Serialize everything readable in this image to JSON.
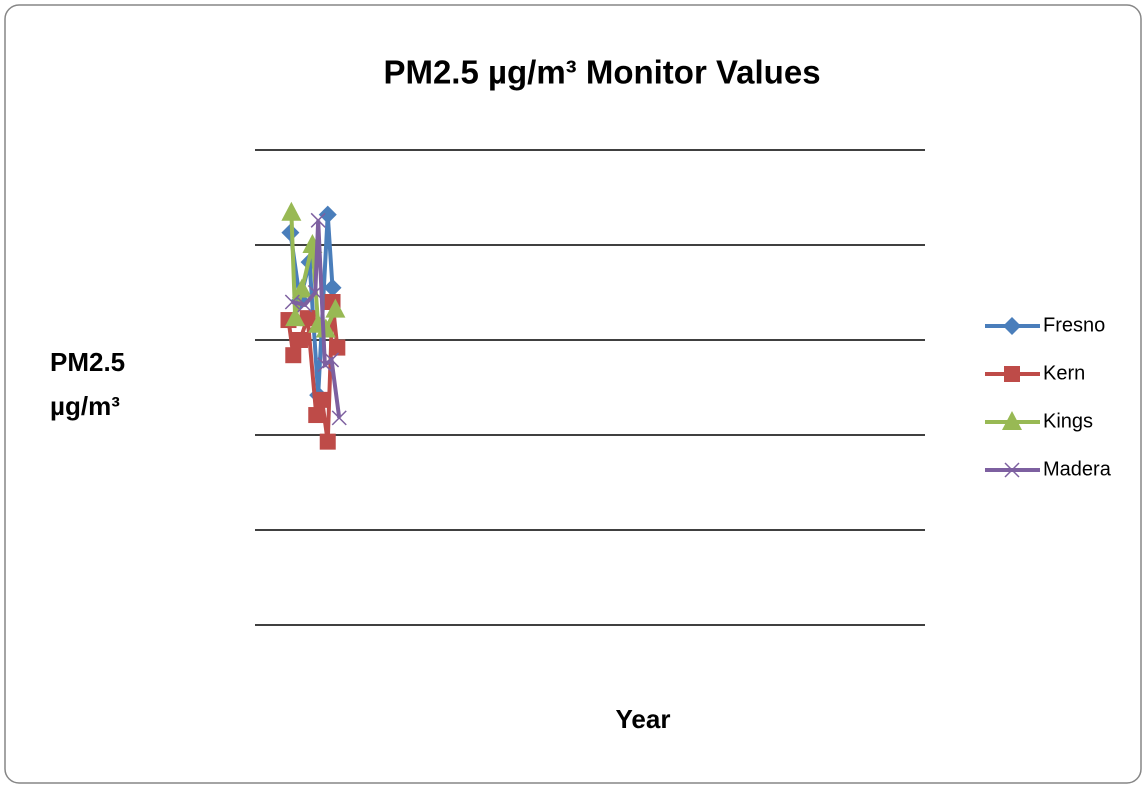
{
  "chart_data": {
    "type": "line",
    "title": "PM2.5 µg/m³ Monitor Values",
    "x_label": "Year",
    "y_label": "PM2.5 µg/m³",
    "xlim": [
      0,
      70
    ],
    "ylim": [
      0,
      5
    ],
    "yticks": [
      0,
      1,
      2,
      3,
      4,
      5
    ],
    "grid": true,
    "legend": "right",
    "series": [
      {
        "name": "Fresno",
        "color": "#4a7ebb",
        "marker": "diamond",
        "x": [
          3.7,
          4.7,
          5.7,
          6.6,
          7.6,
          8.1
        ],
        "values": [
          4.13,
          3.42,
          3.82,
          2.42,
          4.32,
          3.55
        ]
      },
      {
        "name": "Kern",
        "color": "#be4b48",
        "marker": "square",
        "x": [
          3.5,
          4.0,
          4.7,
          5.5,
          6.4,
          7.0,
          7.6,
          8.1,
          8.6
        ],
        "values": [
          3.21,
          2.84,
          3.0,
          3.23,
          2.21,
          2.37,
          1.93,
          3.4,
          2.92
        ]
      },
      {
        "name": "Kings",
        "color": "#98b954",
        "marker": "triangle",
        "x": [
          3.8,
          4.2,
          4.9,
          6.0,
          6.6,
          7.4,
          8.4
        ],
        "values": [
          4.34,
          3.23,
          3.53,
          4.0,
          3.16,
          3.11,
          3.32
        ]
      },
      {
        "name": "Madera",
        "color": "#7d60a0",
        "marker": "x",
        "x": [
          3.9,
          5.2,
          6.3,
          6.6,
          7.3,
          8.0,
          8.8
        ],
        "values": [
          3.4,
          3.37,
          3.5,
          4.26,
          2.74,
          2.79,
          2.18
        ]
      }
    ]
  }
}
